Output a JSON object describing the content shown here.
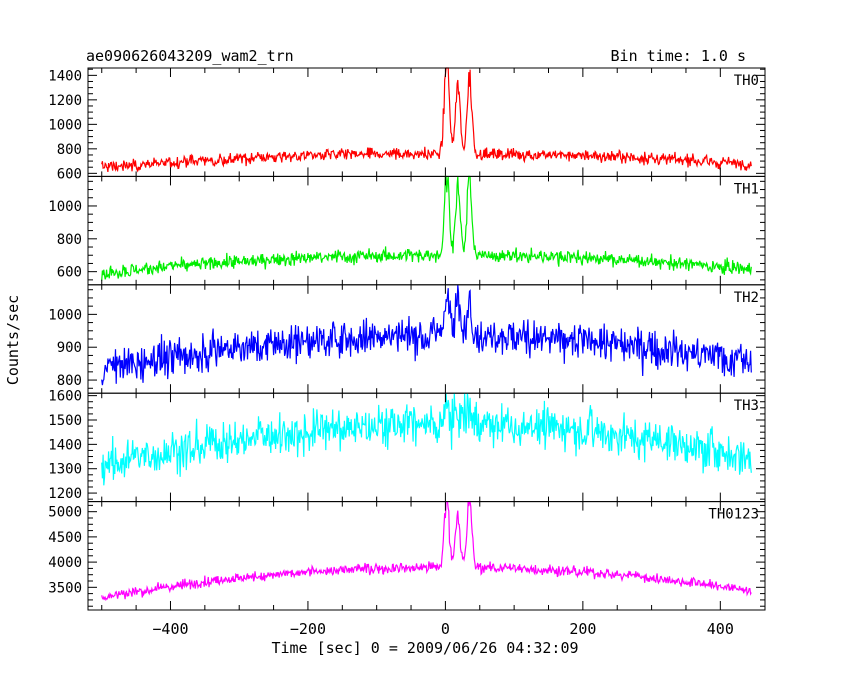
{
  "chart_data": {
    "type": "line",
    "title": "ae090626043209_wam2_trn",
    "bin_time_label": "Bin time: 1.0 s",
    "xlabel": "Time [sec] 0 = 2009/06/26 04:32:09",
    "ylabel": "Counts/sec",
    "xlim": [
      -520,
      465
    ],
    "x_ticks": [
      -400,
      -200,
      0,
      200,
      400
    ],
    "x_tick_labels": [
      "−400",
      "−200",
      "0",
      "200",
      "400"
    ],
    "x_range": [
      -500,
      445
    ],
    "burst_peaks": [
      2,
      18,
      35
    ],
    "panels": [
      {
        "name": "TH0",
        "color": "#ff0000",
        "ylim": [
          575,
          1460
        ],
        "ticks": [
          600,
          800,
          1000,
          1200,
          1400
        ],
        "baseline_edge": 650,
        "baseline_center": 760,
        "noise": 35,
        "burst_heights": [
          760,
          520,
          620
        ]
      },
      {
        "name": "TH1",
        "color": "#00ee00",
        "ylim": [
          520,
          1180
        ],
        "ticks": [
          600,
          800,
          1000
        ],
        "baseline_edge": 590,
        "baseline_center": 700,
        "noise": 30,
        "burst_heights": [
          500,
          400,
          470
        ]
      },
      {
        "name": "TH2",
        "color": "#0000ff",
        "ylim": [
          760,
          1090
        ],
        "ticks": [
          800,
          900,
          1000
        ],
        "baseline_edge": 830,
        "baseline_center": 935,
        "noise": 40,
        "burst_heights": [
          140,
          110,
          120
        ]
      },
      {
        "name": "TH3",
        "color": "#00ffff",
        "ylim": [
          1165,
          1610
        ],
        "ticks": [
          1200,
          1300,
          1400,
          1500,
          1600
        ],
        "baseline_edge": 1310,
        "baseline_center": 1480,
        "noise": 60,
        "burst_heights": [
          80,
          60,
          70
        ]
      },
      {
        "name": "TH0123",
        "color": "#ff00ff",
        "ylim": [
          3050,
          5200
        ],
        "ticks": [
          3500,
          4000,
          4500,
          5000
        ],
        "baseline_edge": 3300,
        "baseline_center": 3900,
        "noise": 75,
        "burst_heights": [
          1350,
          1050,
          1250
        ]
      }
    ]
  }
}
